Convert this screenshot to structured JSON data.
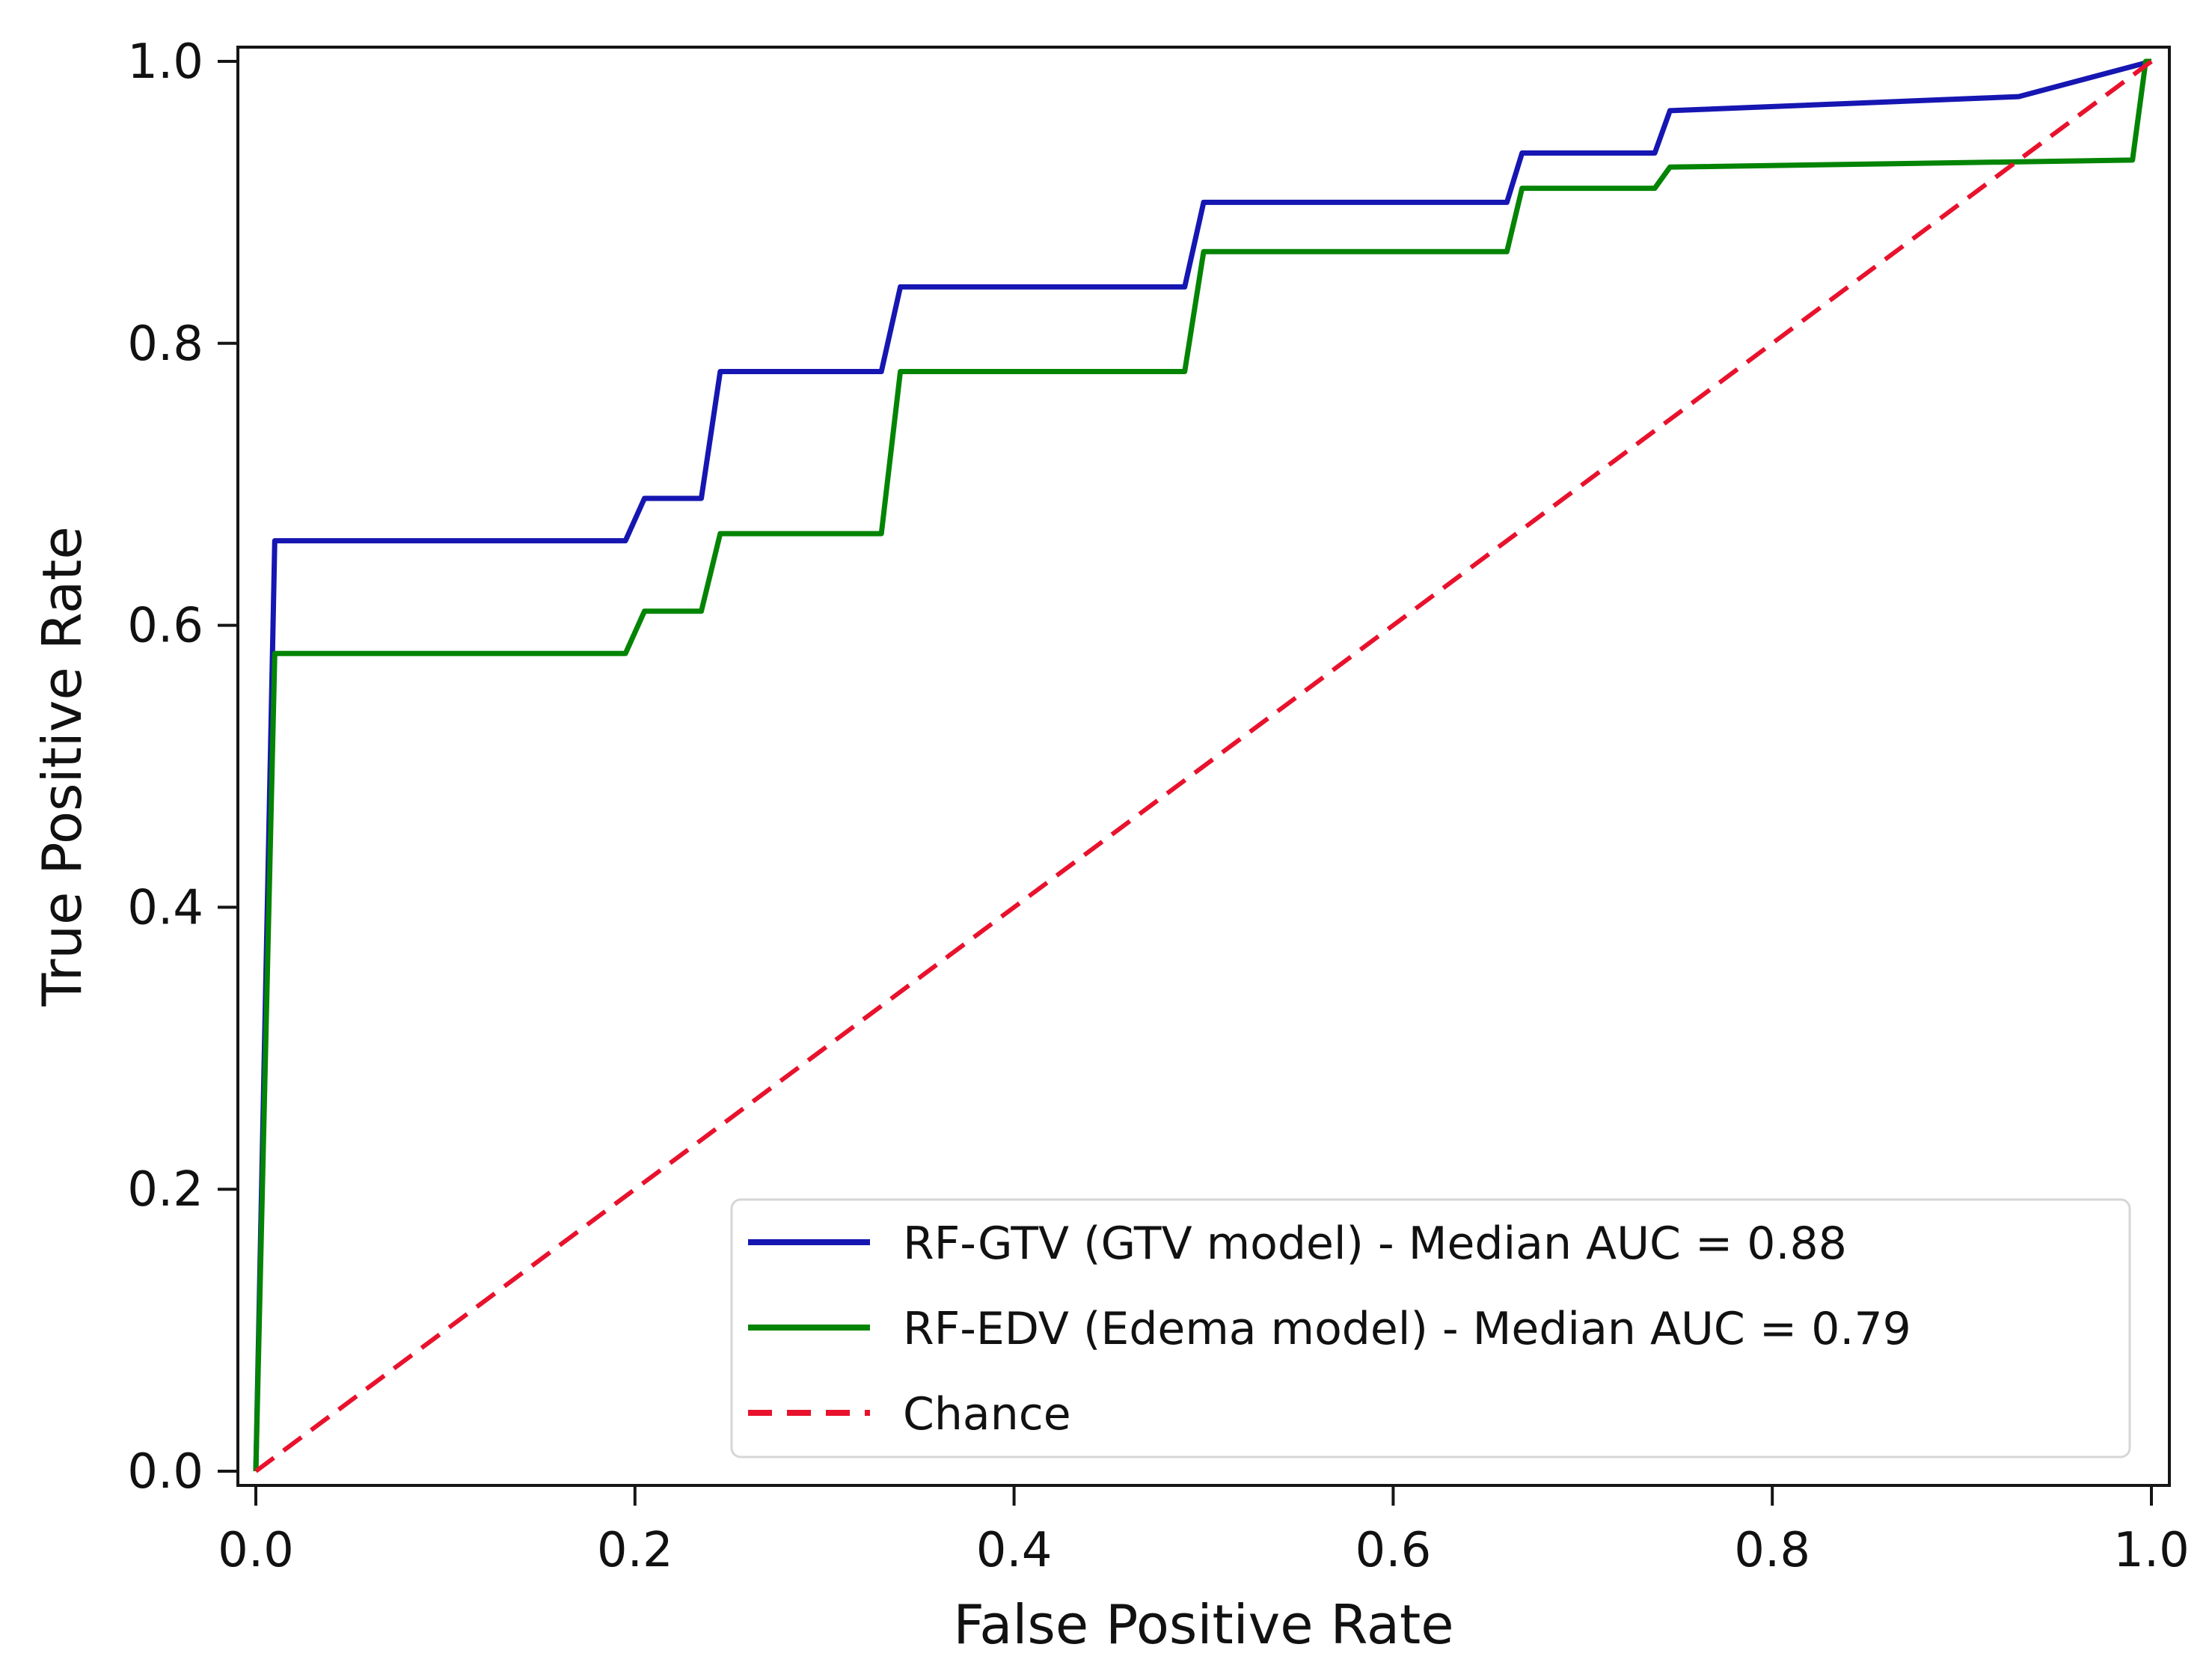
{
  "figure": {
    "background": "#ffffff",
    "text_color": "#111111",
    "spine_color": "#151515",
    "tick_color": "#151515"
  },
  "chart_data": {
    "type": "line",
    "title": "",
    "xlabel": "False Positive Rate",
    "ylabel": "True Positive Rate",
    "xlim": [
      0,
      1
    ],
    "ylim": [
      0,
      1
    ],
    "grid": false,
    "x_ticks": [
      {
        "value": 0.0,
        "label": "0.0"
      },
      {
        "value": 0.2,
        "label": "0.2"
      },
      {
        "value": 0.4,
        "label": "0.4"
      },
      {
        "value": 0.6,
        "label": "0.6"
      },
      {
        "value": 0.8,
        "label": "0.8"
      },
      {
        "value": 1.0,
        "label": "1.0"
      }
    ],
    "y_ticks": [
      {
        "value": 0.0,
        "label": "0.0"
      },
      {
        "value": 0.2,
        "label": "0.2"
      },
      {
        "value": 0.4,
        "label": "0.4"
      },
      {
        "value": 0.6,
        "label": "0.6"
      },
      {
        "value": 0.8,
        "label": "0.8"
      },
      {
        "value": 1.0,
        "label": "1.0"
      }
    ],
    "series": [
      {
        "name": "RF-GTV (GTV model) - Median AUC = 0.88",
        "color": "#1616b2",
        "style": "solid",
        "auc": "0.88",
        "points": [
          [
            0,
            0
          ],
          [
            0.01,
            0.66
          ],
          [
            0.195,
            0.66
          ],
          [
            0.205,
            0.69
          ],
          [
            0.235,
            0.69
          ],
          [
            0.245,
            0.78
          ],
          [
            0.33,
            0.78
          ],
          [
            0.34,
            0.84
          ],
          [
            0.49,
            0.84
          ],
          [
            0.5,
            0.9
          ],
          [
            0.66,
            0.9
          ],
          [
            0.668,
            0.935
          ],
          [
            0.738,
            0.935
          ],
          [
            0.746,
            0.965
          ],
          [
            0.93,
            0.975
          ],
          [
            1.0,
            1.0
          ]
        ]
      },
      {
        "name": "RF-EDV (Edema model) - Median AUC = 0.79",
        "color": "#048404",
        "style": "solid",
        "auc": "0.79",
        "points": [
          [
            0,
            0
          ],
          [
            0.01,
            0.58
          ],
          [
            0.195,
            0.58
          ],
          [
            0.205,
            0.61
          ],
          [
            0.235,
            0.61
          ],
          [
            0.245,
            0.665
          ],
          [
            0.33,
            0.665
          ],
          [
            0.34,
            0.78
          ],
          [
            0.49,
            0.78
          ],
          [
            0.5,
            0.865
          ],
          [
            0.66,
            0.865
          ],
          [
            0.668,
            0.91
          ],
          [
            0.738,
            0.91
          ],
          [
            0.746,
            0.925
          ],
          [
            0.99,
            0.93
          ],
          [
            0.997,
            1.0
          ],
          [
            1.0,
            1.0
          ]
        ]
      },
      {
        "name": "Chance",
        "color": "#e8122d",
        "style": "dashed",
        "points": [
          [
            0,
            0
          ],
          [
            1,
            1
          ]
        ]
      }
    ],
    "legend": {
      "position": "lower-right",
      "border_color": "#d6d6d6",
      "fill": "#ffffff"
    }
  }
}
